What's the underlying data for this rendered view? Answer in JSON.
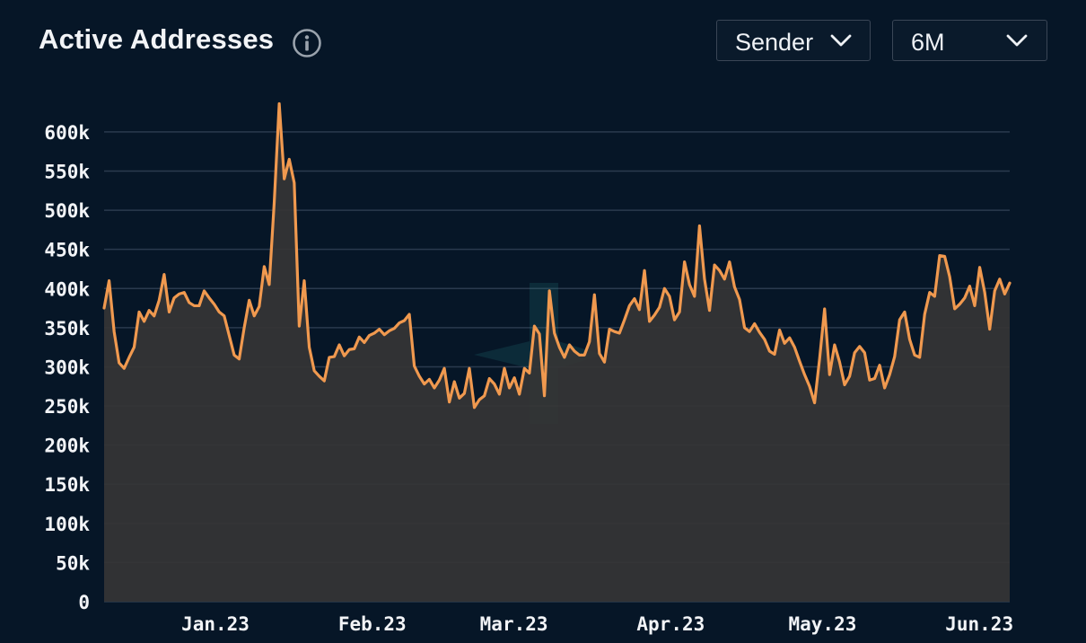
{
  "header": {
    "title": "Active Addresses",
    "metric_dropdown": {
      "selected": "Sender"
    },
    "range_dropdown": {
      "selected": "6M"
    }
  },
  "icons": {
    "info": "info-icon",
    "chevron": "chevron-down-icon"
  },
  "colors": {
    "background": "#061627",
    "line": "#f0994f",
    "area": "#353535",
    "grid": "#2a3a4e"
  },
  "chart_data": {
    "type": "area",
    "xlabel": "",
    "ylabel": "",
    "ylim": [
      0,
      640000
    ],
    "yticks": [
      0,
      50000,
      100000,
      150000,
      200000,
      250000,
      300000,
      350000,
      400000,
      450000,
      500000,
      550000,
      600000
    ],
    "ytick_labels": [
      "0",
      "50k",
      "100k",
      "150k",
      "200k",
      "250k",
      "300k",
      "350k",
      "400k",
      "450k",
      "500k",
      "550k",
      "600k"
    ],
    "x_start": "2022-12-10",
    "x_end": "2023-06-07",
    "xticks": [
      "2023-01-01",
      "2023-02-01",
      "2023-03-01",
      "2023-04-01",
      "2023-05-01",
      "2023-06-01"
    ],
    "xtick_labels": [
      "Jan.23",
      "Feb.23",
      "Mar.23",
      "Apr.23",
      "May.23",
      "Jun.23"
    ],
    "grid": true,
    "legend": "none",
    "series": [
      {
        "values": [
          375000,
          410000,
          345000,
          305000,
          298000,
          312000,
          325000,
          370000,
          358000,
          372000,
          365000,
          385000,
          418000,
          370000,
          388000,
          393000,
          395000,
          382000,
          378000,
          378000,
          397000,
          388000,
          380000,
          370000,
          365000,
          340000,
          315000,
          310000,
          350000,
          385000,
          365000,
          377000,
          428000,
          405000,
          510000,
          636000,
          540000,
          565000,
          535000,
          352000,
          410000,
          325000,
          295000,
          288000,
          282000,
          312000,
          313000,
          328000,
          314000,
          322000,
          323000,
          338000,
          331000,
          340000,
          343000,
          348000,
          341000,
          346000,
          349000,
          356000,
          359000,
          367000,
          301000,
          288000,
          278000,
          284000,
          273000,
          283000,
          298000,
          255000,
          281000,
          260000,
          266000,
          298000,
          248000,
          258000,
          263000,
          285000,
          278000,
          265000,
          298000,
          273000,
          286000,
          265000,
          298000,
          292000,
          352000,
          342000,
          263000,
          397000,
          343000,
          325000,
          312000,
          328000,
          320000,
          315000,
          315000,
          332000,
          392000,
          317000,
          306000,
          348000,
          345000,
          343000,
          360000,
          378000,
          387000,
          373000,
          423000,
          358000,
          366000,
          376000,
          400000,
          390000,
          360000,
          370000,
          434000,
          405000,
          390000,
          480000,
          412000,
          372000,
          430000,
          423000,
          412000,
          434000,
          402000,
          386000,
          350000,
          345000,
          355000,
          344000,
          335000,
          320000,
          316000,
          347000,
          330000,
          337000,
          325000,
          307000,
          290000,
          275000,
          254000,
          310000,
          374000,
          290000,
          328000,
          306000,
          277000,
          288000,
          318000,
          326000,
          318000,
          283000,
          285000,
          302000,
          273000,
          290000,
          313000,
          360000,
          370000,
          335000,
          315000,
          312000,
          367000,
          395000,
          390000,
          442000,
          441000,
          415000,
          374000,
          380000,
          388000,
          403000,
          378000,
          427000,
          395000,
          348000,
          397000,
          412000,
          393000,
          407000
        ]
      }
    ]
  }
}
